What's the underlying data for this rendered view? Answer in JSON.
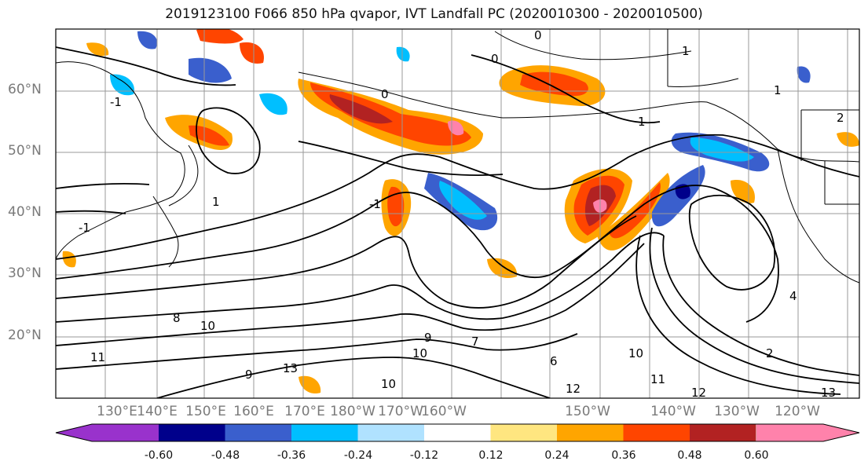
{
  "title": "2019123100 F066 850 hPa qvapor, IVT Landfall PC (2020010300 - 2020010500)",
  "lat_labels": [
    "60°N",
    "50°N",
    "40°N",
    "30°N",
    "20°N"
  ],
  "lon_labels": [
    "130°E",
    "140°E",
    "150°E",
    "160°E",
    "170°E",
    "180°W",
    "170°W",
    "160°W",
    "150°W",
    "140°W",
    "130°W",
    "120°W"
  ],
  "contour_labels": [
    "0",
    "0",
    "-1",
    "1",
    "1",
    "-1",
    "1",
    "-1",
    "0",
    "1",
    "2",
    "6",
    "7",
    "8",
    "9",
    "9",
    "10",
    "10",
    "10",
    "11",
    "11",
    "12",
    "12",
    "13",
    "13",
    "10",
    "2",
    "4"
  ],
  "colorbar": {
    "labels": [
      "-0.60",
      "-0.48",
      "-0.36",
      "-0.24",
      "-0.12",
      "0.12",
      "0.24",
      "0.36",
      "0.48",
      "0.60"
    ],
    "colors": [
      "#9932cc",
      "#00008b",
      "#3a5fcd",
      "#00bfff",
      "#b0e2ff",
      "#ffffff",
      "#ffe680",
      "#ffa500",
      "#ff4500",
      "#b22222",
      "#ff82ab"
    ]
  }
}
